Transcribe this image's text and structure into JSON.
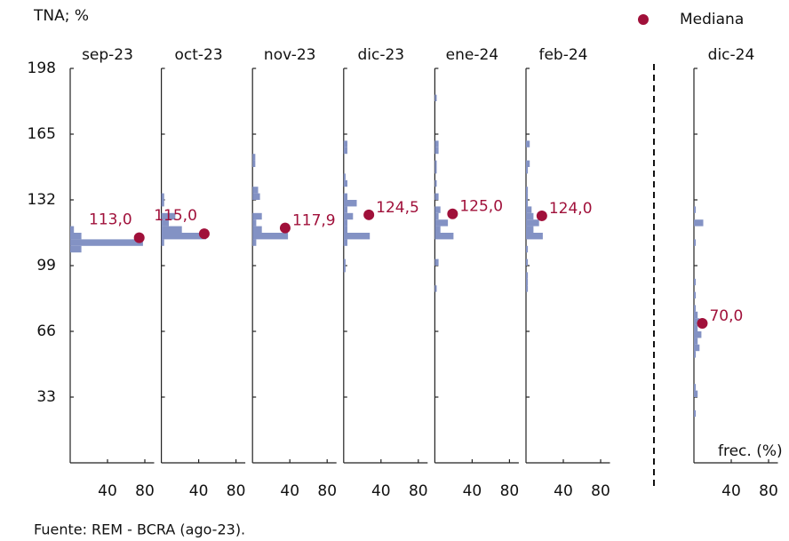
{
  "chart_data": {
    "type": "histogram-panels",
    "y_label": "TNA; %",
    "x_label": "frec. (%)",
    "source": "Fuente: REM - BCRA (ago-23).",
    "legend": {
      "name": "Mediana",
      "color": "#a0103a"
    },
    "bar_color": "#8392c4",
    "ylim": [
      0,
      198
    ],
    "yticks": [
      33,
      66,
      99,
      132,
      165,
      198
    ],
    "xlim": [
      0,
      90
    ],
    "xticks": [
      40,
      80
    ],
    "series": [
      {
        "name": "sep-23",
        "bins": [
          105.6,
          108.9,
          112.2,
          115.5,
          118.8
        ],
        "values": [
          12,
          78,
          12,
          4
        ],
        "median": {
          "x": 74,
          "y": 113,
          "label": "113,0"
        }
      },
      {
        "name": "oct-23",
        "bins": [
          108.9,
          112.2,
          115.5,
          118.8,
          122.1,
          125.4,
          128.7,
          132,
          135.3
        ],
        "values": [
          3,
          48,
          22,
          8,
          15,
          0,
          3,
          3
        ],
        "median": {
          "x": 46,
          "y": 115,
          "label": "115,0"
        }
      },
      {
        "name": "nov-23",
        "bins": [
          108.9,
          112.2,
          115.5,
          118.8,
          122.1,
          125.4,
          128.7,
          132,
          135.3,
          138.6,
          141.9,
          145.2,
          148.5,
          151.8,
          155.1
        ],
        "values": [
          4,
          38,
          10,
          4,
          10,
          0,
          0,
          8,
          6,
          0,
          0,
          0,
          3,
          3
        ],
        "median": {
          "x": 35,
          "y": 117.9,
          "label": "117,9"
        }
      },
      {
        "name": "dic-23",
        "bins": [
          95.7,
          99,
          102.3,
          105.6,
          108.9,
          112.2,
          115.5,
          118.8,
          122.1,
          125.4,
          128.7,
          132,
          135.3,
          138.6,
          141.9,
          145.2,
          148.5,
          151.8,
          155.1,
          158.4,
          161.7,
          165
        ],
        "values": [
          2,
          2,
          0,
          0,
          4,
          28,
          4,
          4,
          10,
          4,
          14,
          4,
          0,
          4,
          2,
          0,
          0,
          0,
          4,
          4,
          0
        ],
        "median": {
          "x": 27,
          "y": 124.5,
          "label": "124,5"
        }
      },
      {
        "name": "ene-24",
        "bins": [
          85.8,
          89.1,
          92.4,
          95.7,
          99,
          102.3,
          105.6,
          108.9,
          112.2,
          115.5,
          118.8,
          122.1,
          125.4,
          128.7,
          132,
          135.3,
          138.6,
          141.9,
          145.2,
          148.5,
          151.8,
          155.1,
          158.4,
          161.7,
          165,
          168.3,
          171.6,
          174.9,
          178.2,
          181.5,
          184.8,
          188.1
        ],
        "values": [
          2,
          0,
          0,
          0,
          4,
          0,
          0,
          0,
          20,
          6,
          14,
          4,
          6,
          0,
          4,
          0,
          2,
          0,
          2,
          2,
          0,
          4,
          4,
          0,
          0,
          0,
          0,
          0,
          0,
          2,
          0
        ],
        "median": {
          "x": 19,
          "y": 125,
          "label": "125,0"
        }
      },
      {
        "name": "feb-24",
        "bins": [
          85.8,
          89.1,
          92.4,
          95.7,
          99,
          102.3,
          105.6,
          108.9,
          112.2,
          115.5,
          118.8,
          122.1,
          125.4,
          128.7,
          132,
          135.3,
          138.6,
          141.9,
          145.2,
          148.5,
          151.8,
          155.1,
          158.4,
          161.7
        ],
        "values": [
          2,
          2,
          2,
          0,
          2,
          0,
          2,
          0,
          18,
          8,
          14,
          8,
          6,
          2,
          2,
          2,
          0,
          0,
          2,
          4,
          0,
          0,
          4
        ],
        "median": {
          "x": 17,
          "y": 124,
          "label": "124,0"
        }
      },
      {
        "name": "dic-24",
        "bins": [
          23.1,
          26.4,
          29.7,
          33,
          36.3,
          39.6,
          42.9,
          46.2,
          49.5,
          52.8,
          56.1,
          59.4,
          62.7,
          66,
          69.3,
          72.6,
          75.9,
          79.2,
          82.5,
          85.8,
          89.1,
          92.4,
          95.7,
          99,
          102.3,
          105.6,
          108.9,
          112.2,
          115.5,
          118.8,
          122.1,
          125.4,
          128.7,
          132
        ],
        "values": [
          2,
          0,
          0,
          4,
          2,
          0,
          0,
          0,
          0,
          2,
          6,
          4,
          8,
          4,
          6,
          4,
          2,
          0,
          2,
          0,
          2,
          0,
          0,
          0,
          0,
          0,
          2,
          0,
          0,
          10,
          0,
          2,
          0
        ],
        "median": {
          "x": 9,
          "y": 70,
          "label": "70,0"
        }
      }
    ]
  }
}
